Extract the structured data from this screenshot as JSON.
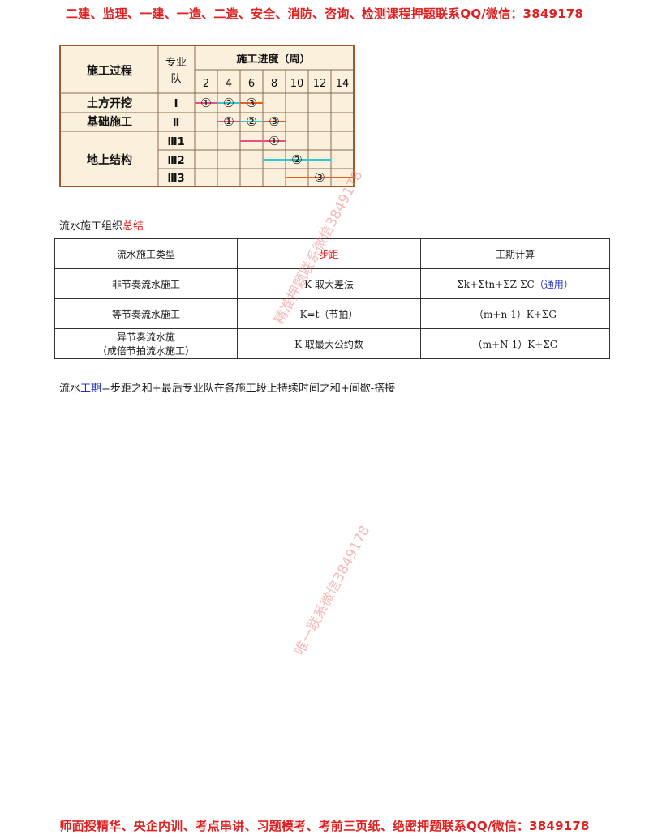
{
  "banners": {
    "top": "二建、监理、一建、一造、二造、安全、消防、咨询、检测课程押题联系QQ/微信：3849178",
    "bottom": "师面授精华、央企内训、考点串讲、习题模考、考前三页纸、绝密押题联系QQ/微信：3849178"
  },
  "gantt": {
    "header_process": "施工过程",
    "header_team_line1": "专业",
    "header_team_line2": "队",
    "header_schedule": "施工进度（周）",
    "weeks": [
      "2",
      "4",
      "6",
      "8",
      "10",
      "12",
      "14"
    ],
    "processes": [
      {
        "name": "土方开挖",
        "teams": [
          "Ⅰ"
        ]
      },
      {
        "name": "基础施工",
        "teams": [
          "Ⅱ"
        ]
      },
      {
        "name": "地上结构",
        "teams": [
          "Ⅲ1",
          "Ⅲ2",
          "Ⅲ3"
        ]
      }
    ],
    "circle_labels": [
      "①",
      "②",
      "③"
    ],
    "colors": {
      "pink": "#e8508a",
      "cyan": "#30c8d0",
      "orange": "#e06020"
    }
  },
  "summary": {
    "heading_prefix": "流水施工组织",
    "heading_red": "总结",
    "table": {
      "headers": [
        "流水施工类型",
        "步距",
        "工期计算"
      ],
      "rows": [
        {
          "type": "非节奏流水施工",
          "step": "K 取大差法",
          "formula": "Σk+Σtn+ΣZ-ΣC",
          "note": "（通用）"
        },
        {
          "type": "等节奏流水施工",
          "step": "K=t（节拍）",
          "formula": "（m+n-1）K+ΣG"
        },
        {
          "type": "异节奏流水施",
          "type_line2": "（成倍节拍流水施工）",
          "step": "K 取最大公约数",
          "formula": "（m+N-1）K+ΣG"
        }
      ]
    }
  },
  "formula_line": {
    "prefix": "流水",
    "blue": "工期",
    "suffix": "=步距之和+最后专业队在各施工段上持续时间之和+间歇-搭接"
  },
  "watermarks": [
    "精准押题联系微信3849178",
    "唯一联系微信3849178"
  ]
}
